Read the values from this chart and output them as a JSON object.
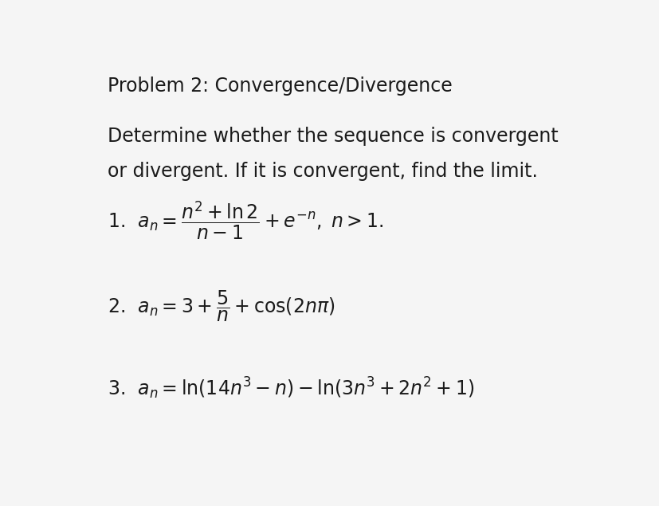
{
  "background_color": "#f5f5f5",
  "text_color": "#1a1a1a",
  "title": "Problem 2: Convergence/Divergence",
  "subtitle_line1": "Determine whether the sequence is convergent",
  "subtitle_line2": "or divergent. If it is convergent, find the limit.",
  "eq1": "1.  $a_n = \\dfrac{n^2 + \\ln 2}{n - 1} + e^{-n}, \\; n > 1.$",
  "eq2_prefix": "2.  $a_n = 3 + \\dfrac{5}{n} + \\cos(2n\\pi)$",
  "eq3": "3.  $a_n = \\ln(14n^3 - n) - \\ln(3n^3 + 2n^2 + 1)$",
  "title_fontsize": 17,
  "subtitle_fontsize": 17,
  "eq_fontsize": 17,
  "fig_width": 8.27,
  "fig_height": 6.35
}
